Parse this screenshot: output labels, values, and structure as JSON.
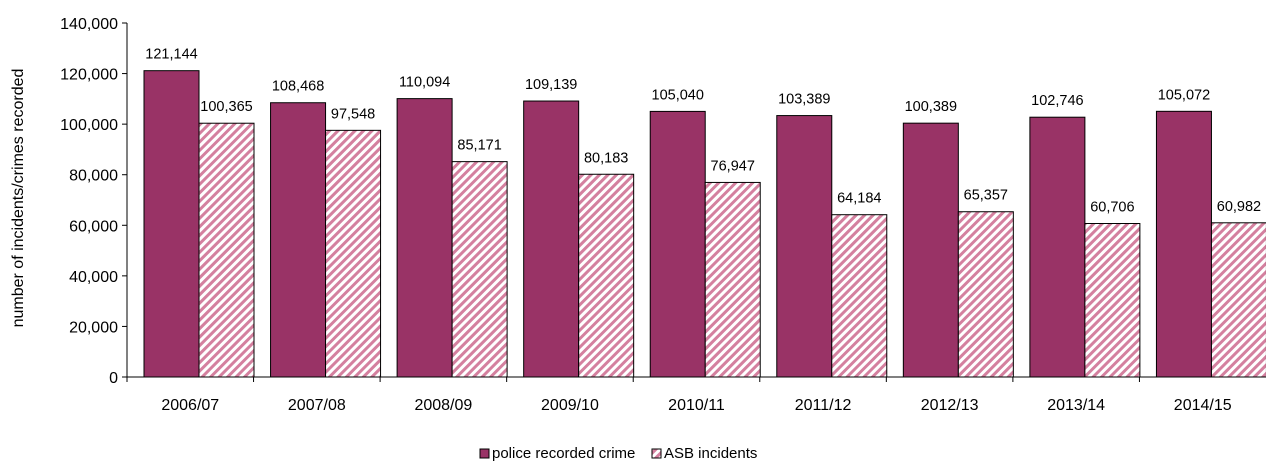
{
  "chart_data": {
    "type": "bar",
    "categories": [
      "2006/07",
      "2007/08",
      "2008/09",
      "2009/10",
      "2010/11",
      "2011/12",
      "2012/13",
      "2013/14",
      "2014/15"
    ],
    "series": [
      {
        "name": "police recorded crime",
        "values": [
          121144,
          108468,
          110094,
          109139,
          105040,
          103389,
          100389,
          102746,
          105072
        ],
        "labels": [
          "121,144",
          "108,468",
          "110,094",
          "109,139",
          "105,040",
          "103,389",
          "100,389",
          "102,746",
          "105,072"
        ],
        "color": "#993366",
        "pattern": "solid"
      },
      {
        "name": "ASB incidents",
        "values": [
          100365,
          97548,
          85171,
          80183,
          76947,
          64184,
          65357,
          60706,
          60982
        ],
        "labels": [
          "100,365",
          "97,548",
          "85,171",
          "80,183",
          "76,947",
          "64,184",
          "65,357",
          "60,706",
          "60,982"
        ],
        "color": "#d4809f",
        "pattern": "diagonal-hatch"
      }
    ],
    "title": "",
    "xlabel": "",
    "ylabel": "number of incidents/crimes recorded",
    "ylim": [
      0,
      140000
    ],
    "yticks": [
      0,
      20000,
      40000,
      60000,
      80000,
      100000,
      120000,
      140000
    ],
    "ytick_labels": [
      "0",
      "20,000",
      "40,000",
      "60,000",
      "80,000",
      "100,000",
      "120,000",
      "140,000"
    ],
    "grid": false,
    "legend_position": "bottom"
  }
}
